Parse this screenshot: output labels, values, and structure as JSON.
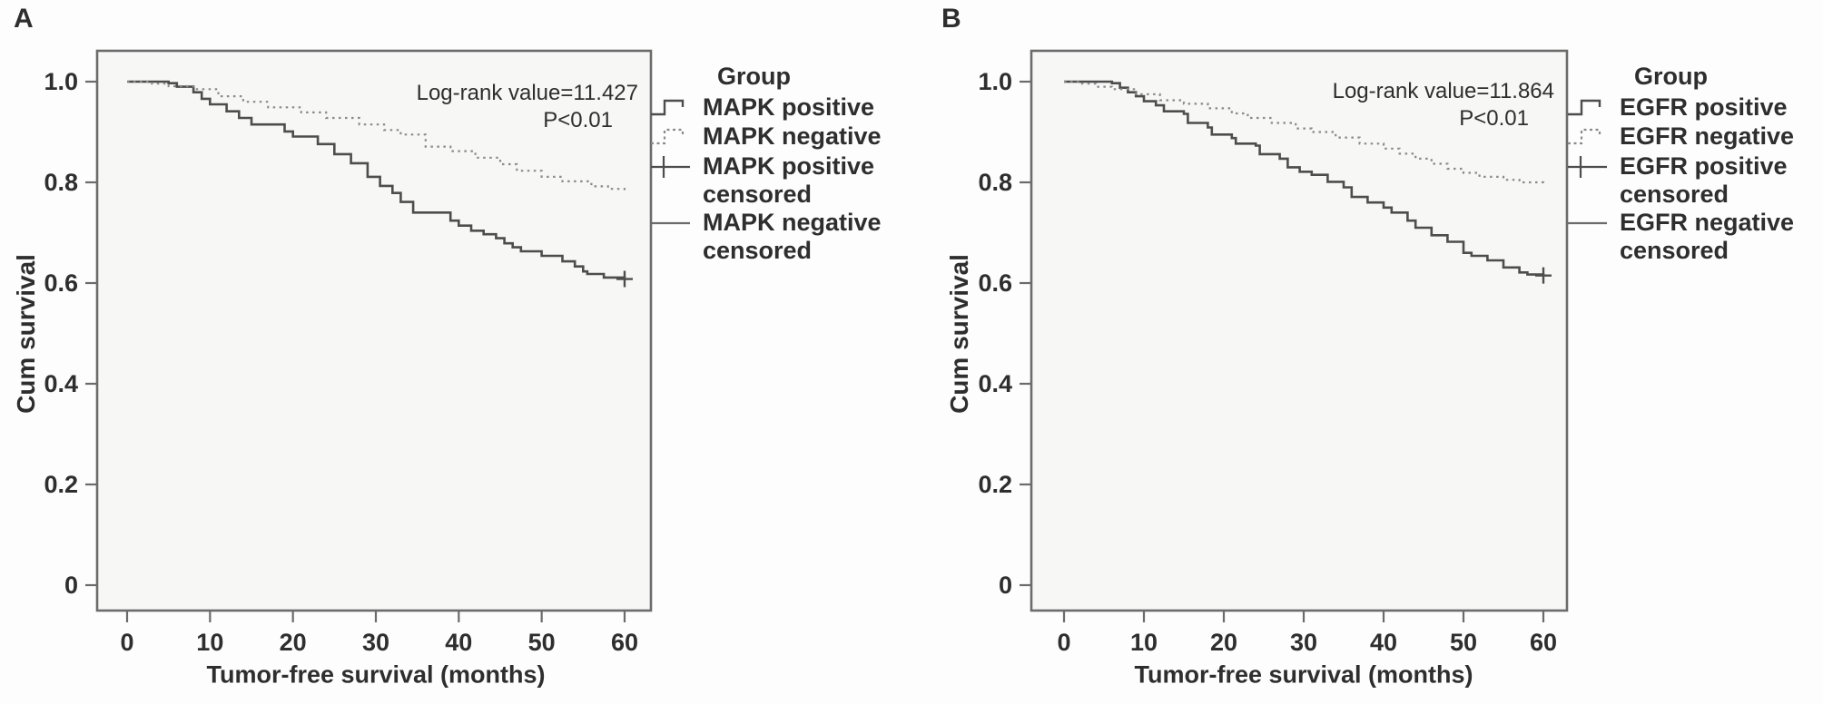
{
  "figure": {
    "page_bg": "#fdfdfd",
    "plot_fill": "#f7f7f6",
    "frame_color": "#6b6b6b",
    "text_color": "#2e2e2e",
    "solid_color": "#4d4d4d",
    "dashed_color": "#8a8a8a"
  },
  "chart_data": [
    {
      "type": "line",
      "subtype": "kaplan-meier-step",
      "panel_label": "A",
      "xlabel": "Tumor-free survival (months)",
      "ylabel": "Cum survival",
      "xlim": [
        0,
        60
      ],
      "ylim": [
        0,
        1.05
      ],
      "grid": false,
      "legend_position": "right",
      "x_ticks": [
        0,
        10,
        20,
        30,
        40,
        50,
        60
      ],
      "y_ticks": [
        {
          "v": 0.0,
          "label": "0"
        },
        {
          "v": 0.2,
          "label": "0.2"
        },
        {
          "v": 0.4,
          "label": "0.4"
        },
        {
          "v": 0.6,
          "label": "0.6"
        },
        {
          "v": 0.8,
          "label": "0.8"
        },
        {
          "v": 1.0,
          "label": "1.0"
        }
      ],
      "annotation": {
        "line1": "Log-rank value=11.427",
        "line2": "P<0.01"
      },
      "legend": {
        "title": "Group",
        "entries": [
          {
            "label": "MAPK positive",
            "symbol": "step-solid"
          },
          {
            "label": "MAPK negative",
            "symbol": "step-dashed"
          },
          {
            "label": "MAPK positive\ncensored",
            "symbol": "plus-censored"
          },
          {
            "label": "MAPK negative\ncensored",
            "symbol": "line-censored"
          }
        ]
      },
      "series": [
        {
          "name": "MAPK positive",
          "style": "solid",
          "points": [
            [
              0,
              1.0
            ],
            [
              5,
              0.997
            ],
            [
              6,
              0.99
            ],
            [
              8,
              0.979
            ],
            [
              9,
              0.966
            ],
            [
              10,
              0.955
            ],
            [
              12,
              0.941
            ],
            [
              13.5,
              0.928
            ],
            [
              15,
              0.915
            ],
            [
              19,
              0.901
            ],
            [
              20,
              0.891
            ],
            [
              23,
              0.876
            ],
            [
              25,
              0.856
            ],
            [
              27,
              0.838
            ],
            [
              29,
              0.811
            ],
            [
              30.5,
              0.793
            ],
            [
              32,
              0.779
            ],
            [
              33,
              0.761
            ],
            [
              34.5,
              0.74
            ],
            [
              39,
              0.724
            ],
            [
              40,
              0.714
            ],
            [
              41.5,
              0.704
            ],
            [
              43,
              0.697
            ],
            [
              44.5,
              0.689
            ],
            [
              45.5,
              0.679
            ],
            [
              46.5,
              0.671
            ],
            [
              47.5,
              0.663
            ],
            [
              50,
              0.654
            ],
            [
              52.5,
              0.643
            ],
            [
              54,
              0.633
            ],
            [
              55,
              0.623
            ],
            [
              55.5,
              0.618
            ],
            [
              57.5,
              0.611
            ],
            [
              60,
              0.608
            ]
          ],
          "censored": [
            [
              60,
              0.608
            ]
          ]
        },
        {
          "name": "MAPK negative",
          "style": "dashed",
          "points": [
            [
              0,
              1.0
            ],
            [
              3,
              0.996
            ],
            [
              5,
              0.991
            ],
            [
              8,
              0.985
            ],
            [
              11,
              0.971
            ],
            [
              14,
              0.96
            ],
            [
              17,
              0.949
            ],
            [
              21,
              0.939
            ],
            [
              24,
              0.928
            ],
            [
              28,
              0.915
            ],
            [
              31,
              0.904
            ],
            [
              33,
              0.895
            ],
            [
              36,
              0.871
            ],
            [
              39,
              0.862
            ],
            [
              42,
              0.849
            ],
            [
              45,
              0.836
            ],
            [
              47,
              0.823
            ],
            [
              50,
              0.811
            ],
            [
              52.5,
              0.802
            ],
            [
              56,
              0.792
            ],
            [
              58,
              0.787
            ],
            [
              60,
              0.784
            ]
          ],
          "censored": []
        }
      ]
    },
    {
      "type": "line",
      "subtype": "kaplan-meier-step",
      "panel_label": "B",
      "xlabel": "Tumor-free survival (months)",
      "ylabel": "Cum survival",
      "xlim": [
        0,
        60
      ],
      "ylim": [
        0,
        1.05
      ],
      "grid": false,
      "legend_position": "right",
      "x_ticks": [
        0,
        10,
        20,
        30,
        40,
        50,
        60
      ],
      "y_ticks": [
        {
          "v": 0.0,
          "label": "0"
        },
        {
          "v": 0.2,
          "label": "0.2"
        },
        {
          "v": 0.4,
          "label": "0.4"
        },
        {
          "v": 0.6,
          "label": "0.6"
        },
        {
          "v": 0.8,
          "label": "0.8"
        },
        {
          "v": 1.0,
          "label": "1.0"
        }
      ],
      "annotation": {
        "line1": "Log-rank value=11.864",
        "line2": "P<0.01"
      },
      "legend": {
        "title": "Group",
        "entries": [
          {
            "label": "EGFR positive",
            "symbol": "step-solid"
          },
          {
            "label": "EGFR negative",
            "symbol": "step-dashed"
          },
          {
            "label": "EGFR positive\ncensored",
            "symbol": "plus-censored"
          },
          {
            "label": "EGFR negative\ncensored",
            "symbol": "line-censored"
          }
        ]
      },
      "series": [
        {
          "name": "EGFR positive",
          "style": "solid",
          "points": [
            [
              0,
              1.0
            ],
            [
              6,
              0.997
            ],
            [
              7,
              0.988
            ],
            [
              8,
              0.979
            ],
            [
              9,
              0.971
            ],
            [
              10,
              0.961
            ],
            [
              11.5,
              0.953
            ],
            [
              12.5,
              0.941
            ],
            [
              15,
              0.936
            ],
            [
              15.5,
              0.918
            ],
            [
              18,
              0.909
            ],
            [
              18.5,
              0.895
            ],
            [
              21,
              0.888
            ],
            [
              21.5,
              0.877
            ],
            [
              24,
              0.873
            ],
            [
              24.5,
              0.856
            ],
            [
              27,
              0.847
            ],
            [
              28,
              0.83
            ],
            [
              29.5,
              0.821
            ],
            [
              31,
              0.815
            ],
            [
              33,
              0.801
            ],
            [
              35,
              0.79
            ],
            [
              36,
              0.771
            ],
            [
              38,
              0.76
            ],
            [
              40,
              0.75
            ],
            [
              41,
              0.74
            ],
            [
              43,
              0.724
            ],
            [
              44,
              0.71
            ],
            [
              46,
              0.695
            ],
            [
              48,
              0.682
            ],
            [
              50,
              0.66
            ],
            [
              51,
              0.654
            ],
            [
              53,
              0.645
            ],
            [
              55,
              0.631
            ],
            [
              57,
              0.621
            ],
            [
              58,
              0.617
            ],
            [
              60,
              0.615
            ]
          ],
          "censored": [
            [
              60,
              0.615
            ]
          ]
        },
        {
          "name": "EGFR negative",
          "style": "dashed",
          "points": [
            [
              0,
              1.0
            ],
            [
              2,
              0.996
            ],
            [
              4,
              0.99
            ],
            [
              6,
              0.985
            ],
            [
              9,
              0.975
            ],
            [
              12,
              0.963
            ],
            [
              15,
              0.956
            ],
            [
              18,
              0.947
            ],
            [
              21,
              0.937
            ],
            [
              23,
              0.928
            ],
            [
              26,
              0.918
            ],
            [
              29,
              0.907
            ],
            [
              31,
              0.9
            ],
            [
              34,
              0.889
            ],
            [
              37,
              0.877
            ],
            [
              40,
              0.867
            ],
            [
              42,
              0.857
            ],
            [
              44,
              0.847
            ],
            [
              46,
              0.837
            ],
            [
              48,
              0.827
            ],
            [
              50,
              0.819
            ],
            [
              52,
              0.811
            ],
            [
              55,
              0.805
            ],
            [
              57,
              0.8
            ],
            [
              60,
              0.797
            ]
          ],
          "censored": []
        }
      ]
    }
  ]
}
